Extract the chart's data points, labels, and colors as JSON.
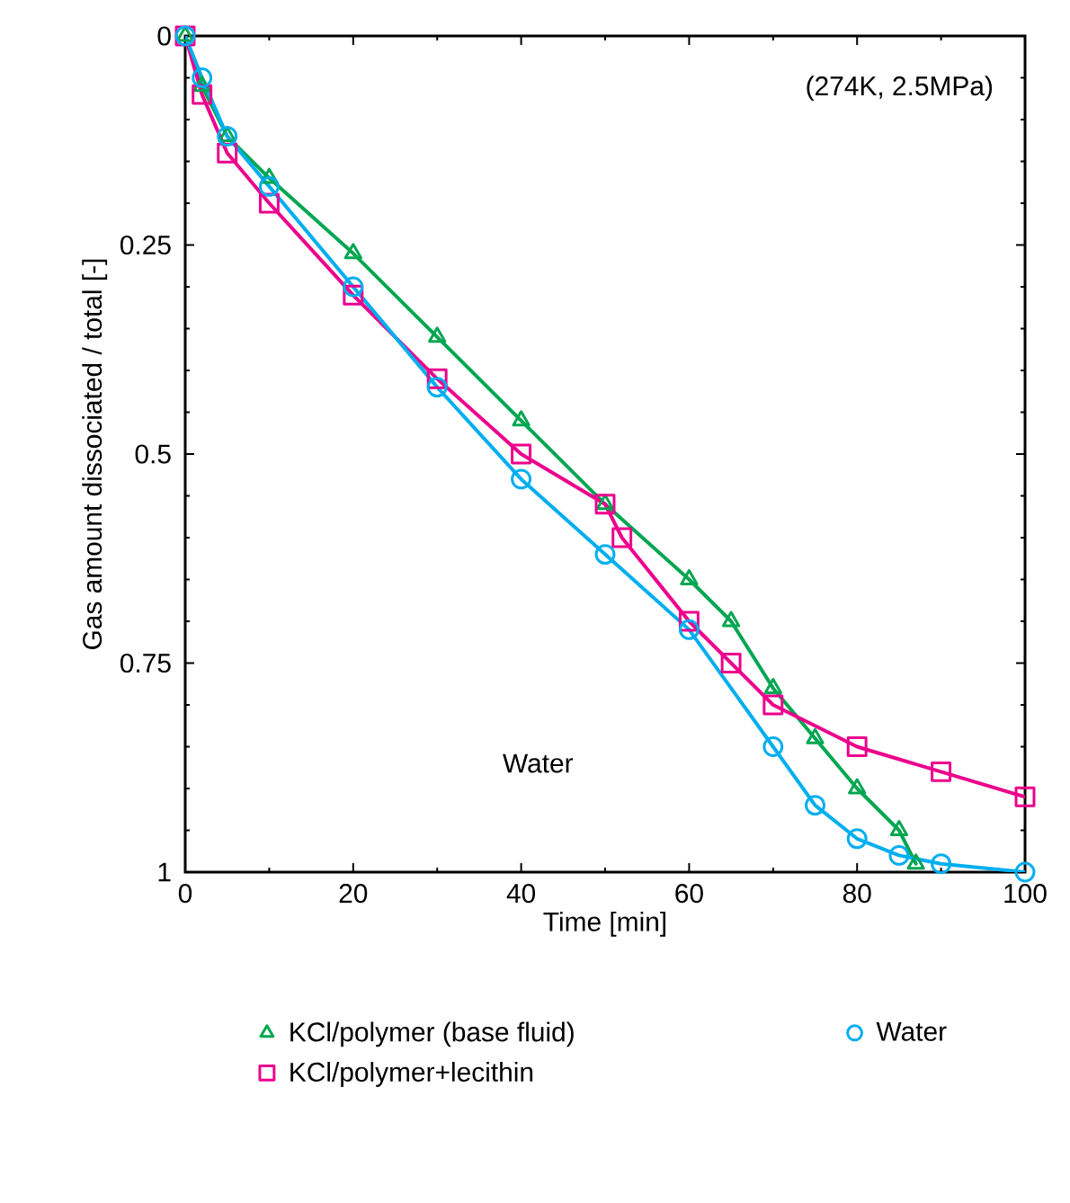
{
  "chart_data": {
    "type": "line",
    "xlabel": "Time [min]",
    "ylabel": "Gas amount dissociated / total [-]",
    "annotations": [
      "(274K, 2.5MPa)",
      "Water"
    ],
    "xlim": [
      0,
      100
    ],
    "xticks": [
      0,
      20,
      40,
      60,
      80,
      100
    ],
    "ylim": [
      1,
      0
    ],
    "yticks": [
      0,
      0.25,
      0.5,
      0.75,
      1
    ],
    "legend": "bottom",
    "grid": false,
    "series": [
      {
        "name": "KCl/polymer (base fluid)",
        "color": "#00a651",
        "marker": "triangle",
        "x": [
          0,
          2,
          5,
          10,
          20,
          30,
          40,
          50,
          60,
          65,
          70,
          75,
          80,
          85,
          87
        ],
        "values": [
          0,
          0.06,
          0.12,
          0.17,
          0.26,
          0.36,
          0.46,
          0.56,
          0.65,
          0.7,
          0.78,
          0.84,
          0.9,
          0.95,
          0.99
        ]
      },
      {
        "name": "KCl/polymer+lecithin",
        "color": "#ec008c",
        "marker": "square",
        "x": [
          0,
          2,
          5,
          10,
          20,
          30,
          40,
          50,
          52,
          60,
          65,
          70,
          80,
          90,
          100
        ],
        "values": [
          0,
          0.07,
          0.14,
          0.2,
          0.31,
          0.41,
          0.5,
          0.56,
          0.6,
          0.7,
          0.75,
          0.8,
          0.85,
          0.88,
          0.91
        ]
      },
      {
        "name": "Water",
        "color": "#00aeef",
        "marker": "circle",
        "x": [
          0,
          2,
          5,
          10,
          20,
          30,
          40,
          50,
          60,
          70,
          75,
          80,
          85,
          90,
          100
        ],
        "values": [
          0,
          0.05,
          0.12,
          0.18,
          0.3,
          0.42,
          0.53,
          0.62,
          0.71,
          0.85,
          0.92,
          0.96,
          0.98,
          0.99,
          1.0
        ]
      }
    ]
  }
}
